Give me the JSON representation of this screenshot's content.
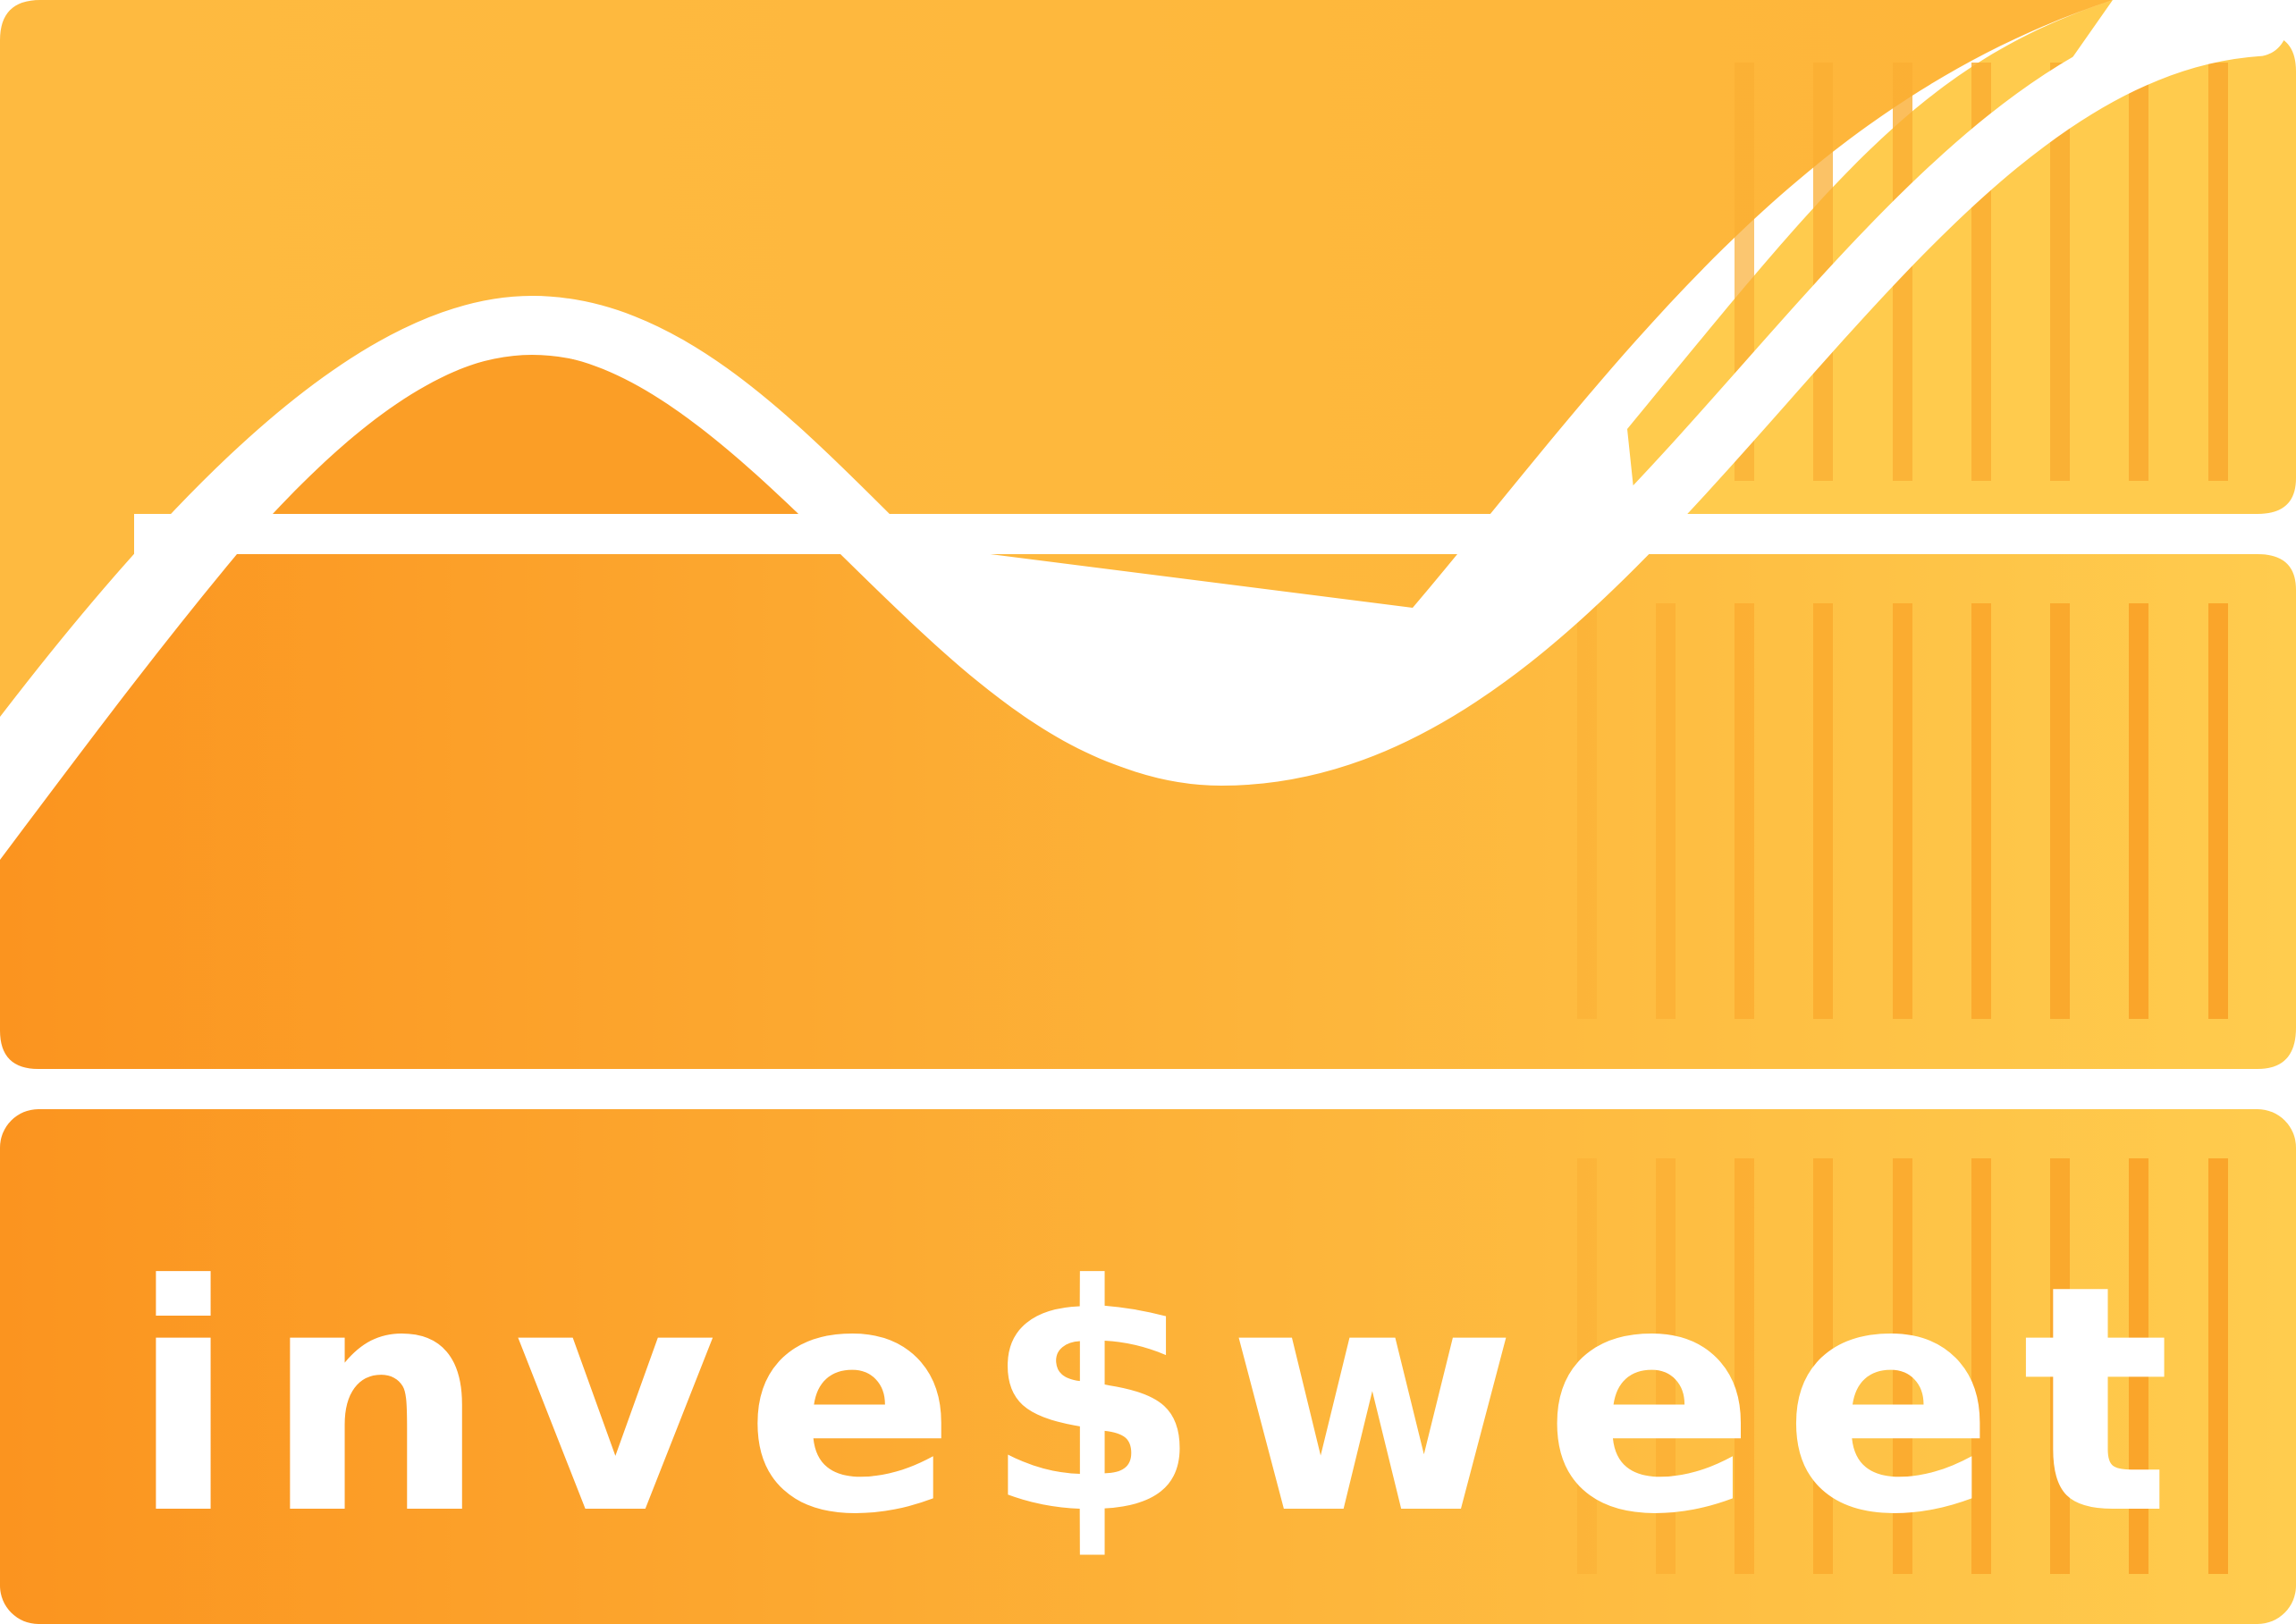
{
  "logo": {
    "wordmark": "inve$weet",
    "icon": "wave-chart-logo-icon"
  },
  "colors": {
    "gradient_start": "#FB941F",
    "gradient_mid": "#FDB43A",
    "gradient_end": "#FFCC4E",
    "top_panel": "#FEBA3E",
    "stripe": "#FAA72C",
    "wave_line": "#FFFFFF",
    "background": "#FFFFFF"
  }
}
